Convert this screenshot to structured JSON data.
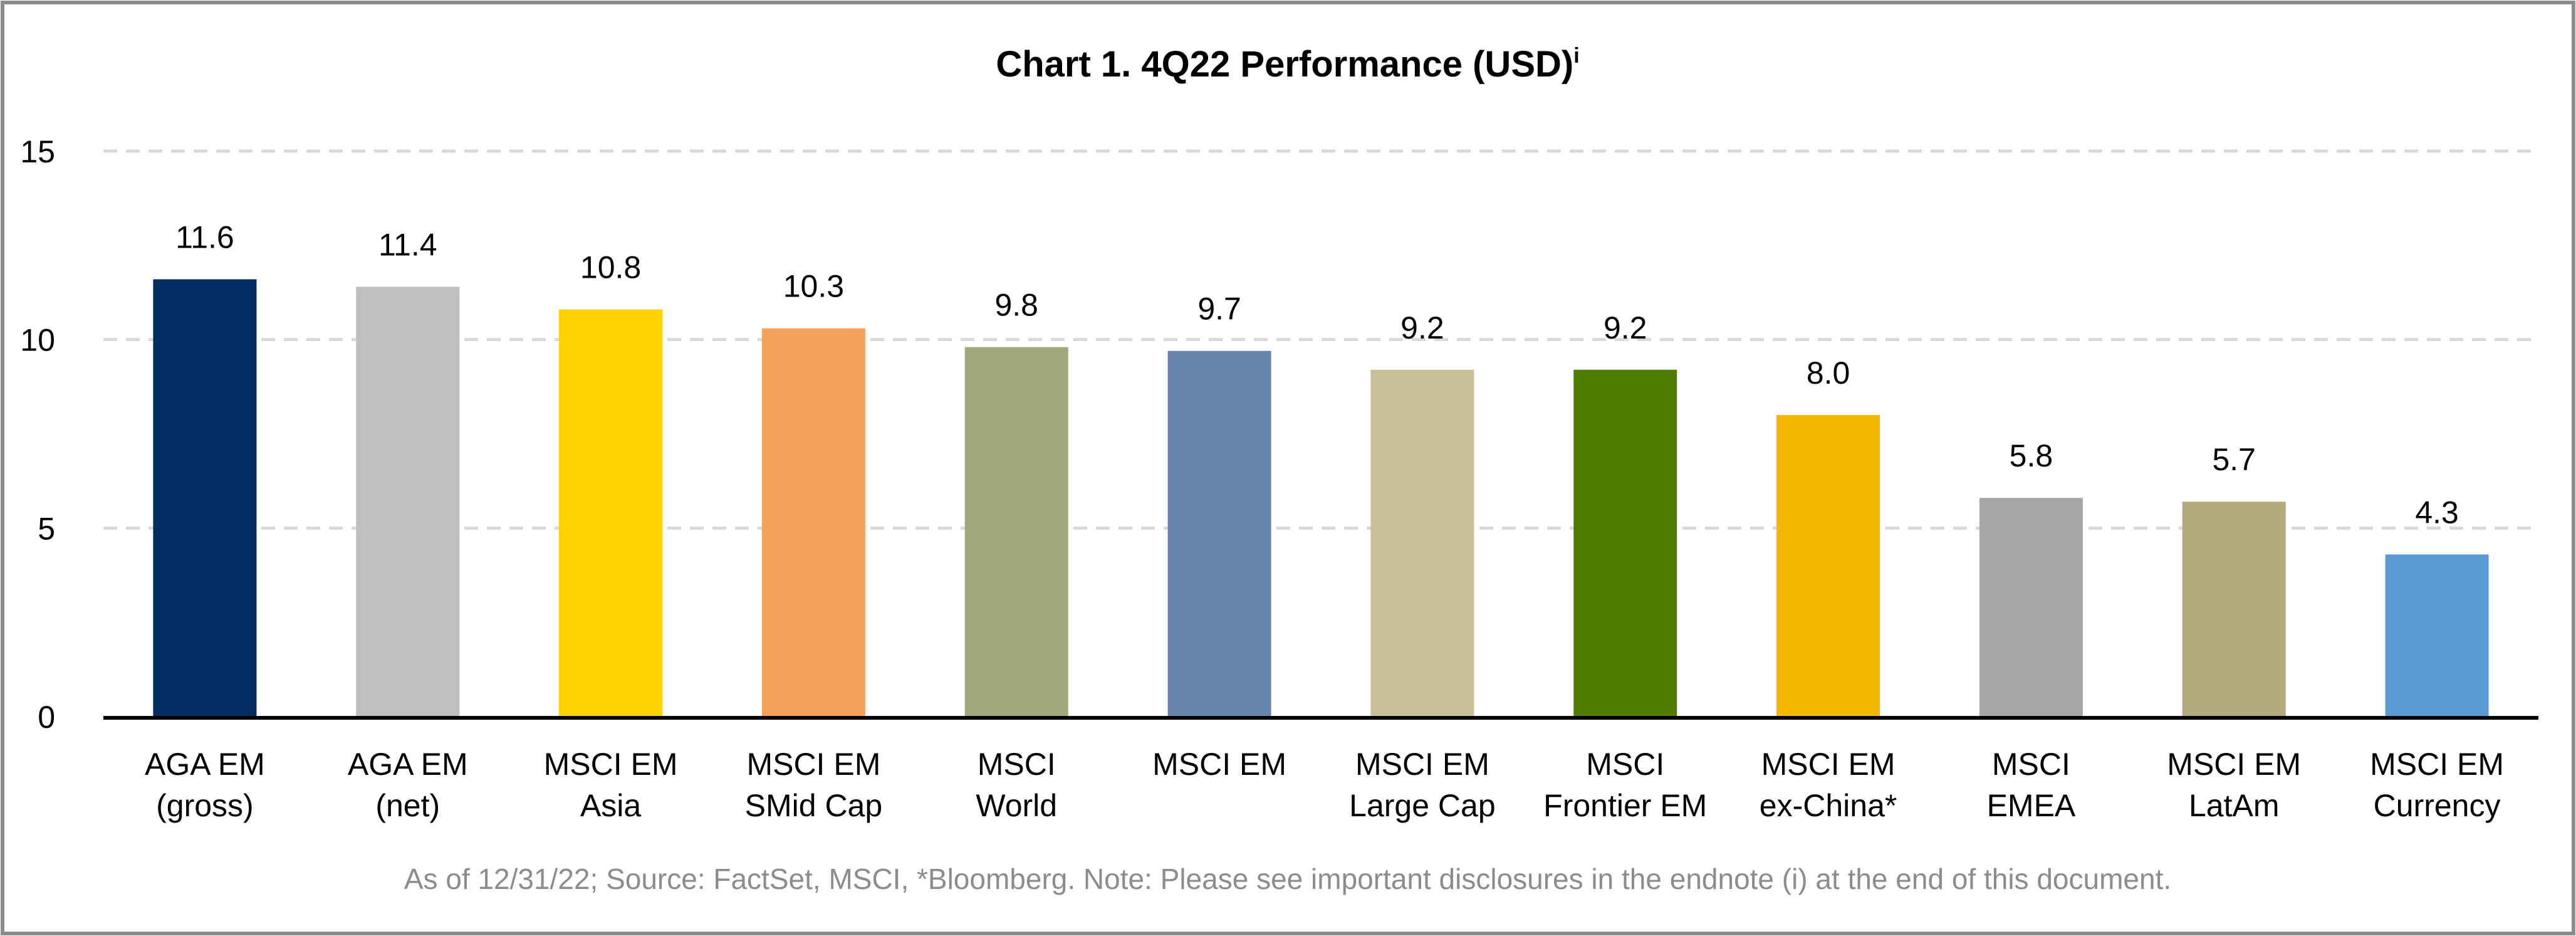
{
  "chart_data": {
    "type": "bar",
    "title": "Chart 1. 4Q22 Performance (USD)",
    "title_superscript": "i",
    "xlabel": "",
    "ylabel": "",
    "ylim": [
      0,
      15
    ],
    "yticks": [
      0,
      5,
      10,
      15
    ],
    "grid": true,
    "legend": "none",
    "categories": [
      [
        "AGA EM",
        "(gross)"
      ],
      [
        "AGA EM",
        "(net)"
      ],
      [
        "MSCI EM",
        "Asia"
      ],
      [
        "MSCI EM",
        "SMid Cap"
      ],
      [
        "MSCI",
        "World"
      ],
      [
        "MSCI EM",
        ""
      ],
      [
        "MSCI EM",
        "Large Cap"
      ],
      [
        "MSCI",
        "Frontier EM"
      ],
      [
        "MSCI EM",
        "ex-China*"
      ],
      [
        "MSCI",
        "EMEA"
      ],
      [
        "MSCI EM",
        "LatAm"
      ],
      [
        "MSCI EM",
        "Currency"
      ]
    ],
    "values": [
      11.6,
      11.4,
      10.8,
      10.3,
      9.8,
      9.7,
      9.2,
      9.2,
      8.0,
      5.8,
      5.7,
      4.3
    ],
    "value_labels": [
      "11.6",
      "11.4",
      "10.8",
      "10.3",
      "9.8",
      "9.7",
      "9.2",
      "9.2",
      "8.0",
      "5.8",
      "5.7",
      "4.3"
    ],
    "colors": [
      "#002d5f",
      "#bfbfbf",
      "#ffd100",
      "#f5a15a",
      "#9fa878",
      "#6886ab",
      "#c6bf98",
      "#527e00",
      "#f5b800",
      "#a6a6a6",
      "#b3aa7a",
      "#5b9bd5"
    ],
    "footnote": "As of 12/31/22; Source: FactSet, MSCI, *Bloomberg. Note: Please see important disclosures in the endnote (i) at the end of this document."
  }
}
